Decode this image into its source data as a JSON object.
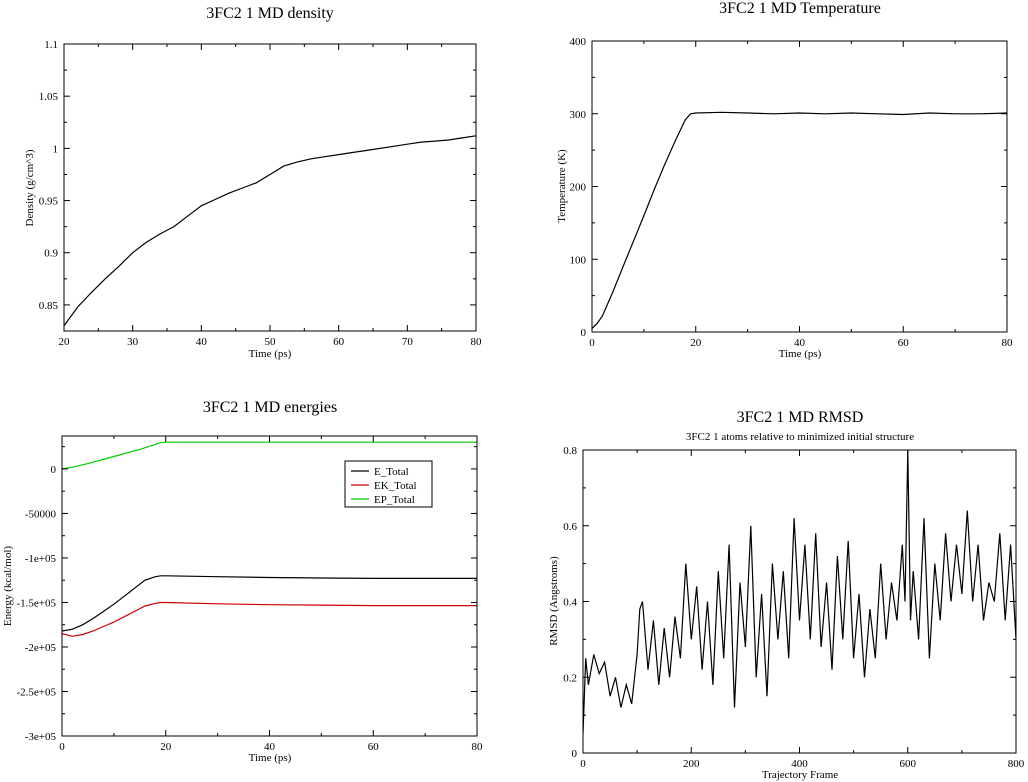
{
  "chart_data": [
    {
      "id": "density",
      "type": "line",
      "title": "3FC2 1 MD density",
      "subtitle": "",
      "xlabel": "Time (ps)",
      "ylabel": "Density (g/cm^3)",
      "xlim": [
        20,
        80
      ],
      "ylim": [
        0.825,
        1.1
      ],
      "xticks": [
        20,
        30,
        40,
        50,
        60,
        70,
        80
      ],
      "xtick_labels": [
        "20",
        "30",
        "40",
        "50",
        "60",
        "70",
        "80"
      ],
      "yticks": [
        0.85,
        0.9,
        0.95,
        1.0,
        1.05,
        1.1
      ],
      "ytick_labels": [
        "0.85",
        "0.9",
        "0.95",
        "1",
        "1.05",
        "1.1"
      ],
      "grid": false,
      "legend": "",
      "series": [
        {
          "name": "",
          "color": "#000000",
          "x": [
            20,
            22,
            24,
            26,
            28,
            30,
            32,
            34,
            36,
            38,
            40,
            42,
            44,
            46,
            48,
            50,
            52,
            54,
            56,
            58,
            60,
            62,
            64,
            66,
            68,
            70,
            72,
            74,
            76,
            78,
            80
          ],
          "y": [
            0.83,
            0.848,
            0.862,
            0.875,
            0.887,
            0.9,
            0.91,
            0.918,
            0.925,
            0.935,
            0.945,
            0.951,
            0.957,
            0.962,
            0.967,
            0.975,
            0.983,
            0.987,
            0.99,
            0.992,
            0.994,
            0.996,
            0.998,
            1.0,
            1.002,
            1.004,
            1.006,
            1.007,
            1.008,
            1.01,
            1.012
          ]
        }
      ]
    },
    {
      "id": "temperature",
      "type": "line",
      "title": "3FC2 1 MD Temperature",
      "subtitle": "",
      "xlabel": "Time (ps)",
      "ylabel": "Temperature (K)",
      "xlim": [
        0,
        80
      ],
      "ylim": [
        0,
        400
      ],
      "xticks": [
        0,
        20,
        40,
        60,
        80
      ],
      "xtick_labels": [
        "0",
        "20",
        "40",
        "60",
        "80"
      ],
      "yticks": [
        0,
        100,
        200,
        300,
        400
      ],
      "ytick_labels": [
        "0",
        "100",
        "200",
        "300",
        "400"
      ],
      "grid": false,
      "legend": "",
      "series": [
        {
          "name": "",
          "color": "#000000",
          "x": [
            0,
            1,
            2,
            4,
            6,
            8,
            10,
            12,
            14,
            16,
            18,
            19,
            20,
            25,
            30,
            35,
            40,
            45,
            50,
            55,
            60,
            65,
            70,
            75,
            80
          ],
          "y": [
            5,
            12,
            22,
            55,
            90,
            125,
            160,
            196,
            230,
            262,
            292,
            300,
            301,
            302,
            301,
            300,
            301,
            300,
            301,
            300,
            299,
            301,
            300,
            300,
            301
          ]
        }
      ]
    },
    {
      "id": "energies",
      "type": "line",
      "title": "3FC2 1 MD energies",
      "subtitle": "",
      "xlabel": "Time (ps)",
      "ylabel": "Energy (kcal/mol)",
      "xlim": [
        0,
        80
      ],
      "ylim": [
        -300000,
        37000
      ],
      "xticks": [
        0,
        20,
        40,
        60,
        80
      ],
      "xtick_labels": [
        "0",
        "20",
        "40",
        "60",
        "80"
      ],
      "yticks": [
        0,
        -50000,
        -100000,
        -150000,
        -200000,
        -250000,
        -300000
      ],
      "ytick_labels": [
        "0",
        "-50000",
        "-1e+05",
        "-1.5e+05",
        "-2e+05",
        "-2.5e+05",
        "-3e+05"
      ],
      "grid": false,
      "legend": "top-right",
      "series": [
        {
          "name": "E_Total",
          "color": "#000000",
          "x": [
            0,
            2,
            4,
            6,
            8,
            10,
            12,
            14,
            16,
            18,
            19,
            20,
            30,
            40,
            50,
            60,
            70,
            80
          ],
          "y": [
            -182000,
            -180000,
            -175000,
            -168000,
            -160000,
            -152000,
            -143000,
            -134000,
            -125000,
            -121000,
            -120000,
            -120000,
            -121000,
            -122000,
            -122500,
            -123000,
            -123000,
            -123000
          ]
        },
        {
          "name": "EK_Total",
          "color": "#cc0000",
          "x": [
            0,
            2,
            4,
            6,
            8,
            10,
            12,
            14,
            16,
            18,
            19,
            20,
            30,
            40,
            50,
            60,
            70,
            80
          ],
          "y": [
            -185000,
            -188000,
            -186000,
            -182000,
            -177000,
            -172000,
            -166000,
            -160000,
            -154000,
            -151000,
            -150000,
            -150000,
            -151500,
            -152500,
            -153000,
            -153500,
            -153500,
            -153500
          ]
        },
        {
          "name": "EP_Total",
          "color": "#00cc00",
          "x": [
            0,
            2,
            5,
            10,
            15,
            19,
            20,
            40,
            60,
            80
          ],
          "y": [
            0,
            2000,
            6000,
            14000,
            22000,
            29500,
            30000,
            30000,
            30000,
            30000
          ]
        }
      ]
    },
    {
      "id": "rmsd",
      "type": "line",
      "title": "3FC2 1 MD RMSD",
      "subtitle": "3FC2 1 atoms relative to minimized initial structure",
      "xlabel": "Trajectory Frame",
      "ylabel": "RMSD (Angstroms)",
      "xlim": [
        0,
        800
      ],
      "ylim": [
        0,
        0.8
      ],
      "xticks": [
        0,
        200,
        400,
        600,
        800
      ],
      "xtick_labels": [
        "0",
        "200",
        "400",
        "600",
        "800"
      ],
      "yticks": [
        0,
        0.2,
        0.4,
        0.6,
        0.8
      ],
      "ytick_labels": [
        "0",
        "0.2",
        "0.4",
        "0.6",
        "0.8"
      ],
      "grid": false,
      "legend": "",
      "series": [
        {
          "name": "",
          "color": "#000000",
          "x": [
            0,
            5,
            10,
            20,
            30,
            40,
            50,
            60,
            70,
            80,
            90,
            100,
            105,
            110,
            120,
            130,
            140,
            150,
            160,
            170,
            180,
            190,
            200,
            210,
            220,
            230,
            240,
            250,
            260,
            270,
            280,
            290,
            300,
            310,
            320,
            330,
            340,
            350,
            360,
            370,
            380,
            390,
            400,
            410,
            420,
            430,
            440,
            450,
            460,
            470,
            480,
            490,
            500,
            510,
            520,
            530,
            540,
            550,
            560,
            570,
            580,
            590,
            595,
            600,
            605,
            610,
            620,
            630,
            640,
            650,
            660,
            670,
            680,
            690,
            700,
            710,
            720,
            730,
            740,
            750,
            760,
            770,
            780,
            790,
            800
          ],
          "y": [
            0.05,
            0.25,
            0.18,
            0.26,
            0.21,
            0.24,
            0.15,
            0.2,
            0.12,
            0.18,
            0.13,
            0.26,
            0.38,
            0.4,
            0.22,
            0.35,
            0.18,
            0.33,
            0.2,
            0.36,
            0.25,
            0.5,
            0.3,
            0.44,
            0.22,
            0.4,
            0.18,
            0.48,
            0.25,
            0.55,
            0.12,
            0.45,
            0.28,
            0.6,
            0.2,
            0.42,
            0.15,
            0.5,
            0.3,
            0.48,
            0.25,
            0.62,
            0.35,
            0.55,
            0.3,
            0.58,
            0.28,
            0.45,
            0.22,
            0.52,
            0.3,
            0.56,
            0.25,
            0.42,
            0.2,
            0.38,
            0.25,
            0.5,
            0.3,
            0.45,
            0.35,
            0.55,
            0.4,
            0.8,
            0.35,
            0.48,
            0.3,
            0.62,
            0.25,
            0.5,
            0.35,
            0.58,
            0.4,
            0.55,
            0.42,
            0.64,
            0.4,
            0.55,
            0.35,
            0.45,
            0.4,
            0.58,
            0.35,
            0.55,
            0.3
          ]
        }
      ]
    }
  ]
}
